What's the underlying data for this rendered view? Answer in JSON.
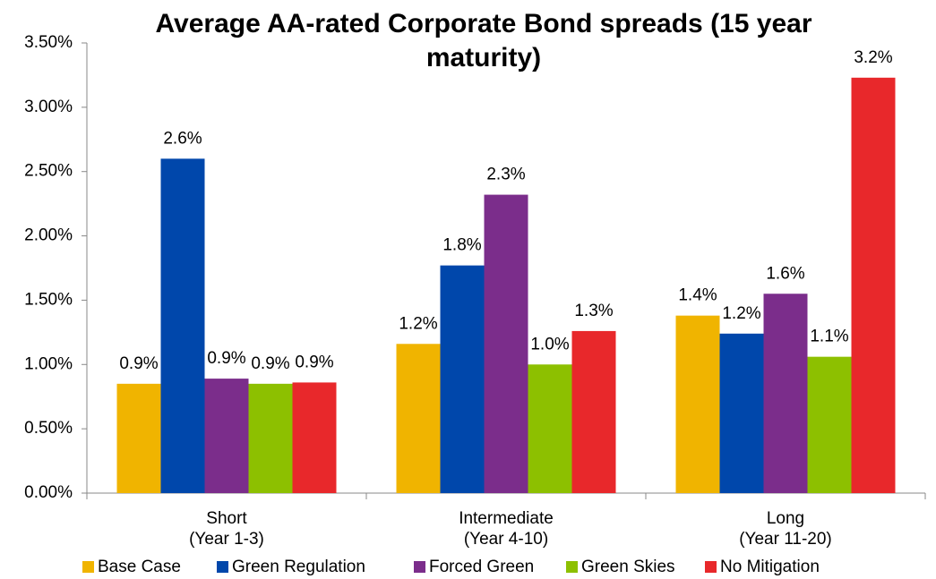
{
  "chart_data": {
    "type": "bar",
    "title": "Average AA-rated Corporate Bond spreads (15 year maturity)",
    "categories": [
      [
        "Short",
        "(Year 1-3)"
      ],
      [
        "Intermediate",
        "(Year 4-10)"
      ],
      [
        "Long",
        "(Year 11-20)"
      ]
    ],
    "series": [
      {
        "name": "Base Case",
        "color": "#f0b400",
        "values": [
          0.85,
          1.16,
          1.38
        ],
        "value_labels": [
          "0.9%",
          "1.2%",
          "1.4%"
        ]
      },
      {
        "name": "Green Regulation",
        "color": "#0047ab",
        "values": [
          2.6,
          1.77,
          1.24
        ],
        "value_labels": [
          "2.6%",
          "1.8%",
          "1.2%"
        ]
      },
      {
        "name": "Forced Green",
        "color": "#7b2d8b",
        "values": [
          0.89,
          2.32,
          1.55
        ],
        "value_labels": [
          "0.9%",
          "2.3%",
          "1.6%"
        ]
      },
      {
        "name": "Green Skies",
        "color": "#8dc000",
        "values": [
          0.85,
          1.0,
          1.06
        ],
        "value_labels": [
          "0.9%",
          "1.0%",
          "1.1%"
        ]
      },
      {
        "name": "No Mitigation",
        "color": "#e8282b",
        "values": [
          0.86,
          1.26,
          3.23
        ],
        "value_labels": [
          "0.9%",
          "1.3%",
          "3.2%"
        ]
      }
    ],
    "ylim": [
      0,
      3.5
    ],
    "yticks": [
      {
        "value": 0,
        "label": "0.00%"
      },
      {
        "value": 0.5,
        "label": "0.50%"
      },
      {
        "value": 1,
        "label": "1.00%"
      },
      {
        "value": 1.5,
        "label": "1.50%"
      },
      {
        "value": 2,
        "label": "2.00%"
      },
      {
        "value": 2.5,
        "label": "2.50%"
      },
      {
        "value": 3,
        "label": "3.00%"
      },
      {
        "value": 3.5,
        "label": "3.50%"
      }
    ],
    "grid": false,
    "legend": "bottom"
  }
}
